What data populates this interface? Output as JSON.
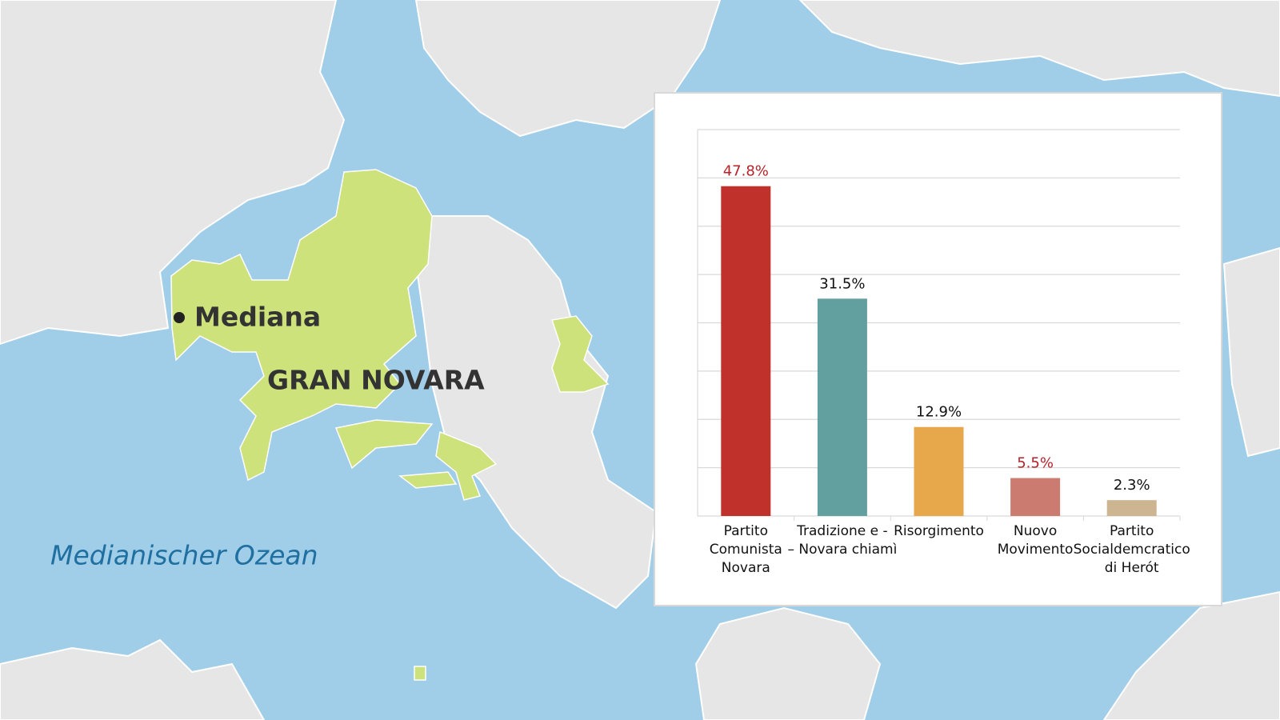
{
  "map": {
    "labels": {
      "city": "Mediana",
      "region": "GRAN NOVARA",
      "ocean": "Medianischer Ozean"
    }
  },
  "chart_data": {
    "type": "bar",
    "categories": [
      "Partito\nComunista\nNovara",
      "Tradizione e -\n– Novara chiamì",
      "Risorgimento",
      "Nuovo\nMovimento",
      "Partito\nSocialdemcratico\ndi Herót"
    ],
    "values": [
      47.8,
      31.5,
      12.9,
      5.5,
      2.3
    ],
    "value_labels": [
      "47.8%",
      "31.5%",
      "12.9%",
      "5.5%",
      "2.3%"
    ],
    "colors": [
      "#c0312b",
      "#62a0a0",
      "#e6a84a",
      "#cc7b70",
      "#cdb592"
    ],
    "value_label_colors": [
      "#b5232a",
      "#111111",
      "#111111",
      "#b5232a",
      "#111111"
    ],
    "ylim": [
      0,
      56
    ],
    "yticks": [
      0,
      7,
      14,
      21,
      28,
      35,
      42,
      49,
      56
    ],
    "grid": true
  }
}
